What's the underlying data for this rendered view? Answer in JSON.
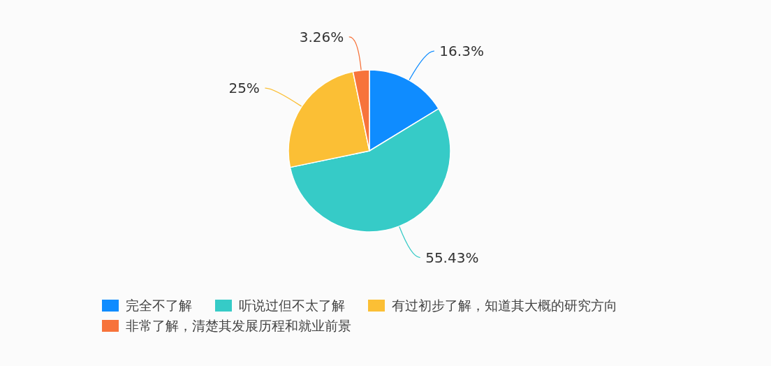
{
  "chart_data": {
    "type": "pie",
    "categories": [
      "完全不了解",
      "听说过但不太了解",
      "有过初步了解，知道其大概的研究方向",
      "非常了解，清楚其发展历程和就业前景"
    ],
    "values": [
      16.3,
      55.43,
      25,
      3.26
    ],
    "colors": [
      "#0f8cff",
      "#36cbc7",
      "#fbbf35",
      "#f7733b"
    ],
    "value_labels": [
      "16.3%",
      "55.43%",
      "25%",
      "3.26%"
    ],
    "legend": "bottom"
  }
}
